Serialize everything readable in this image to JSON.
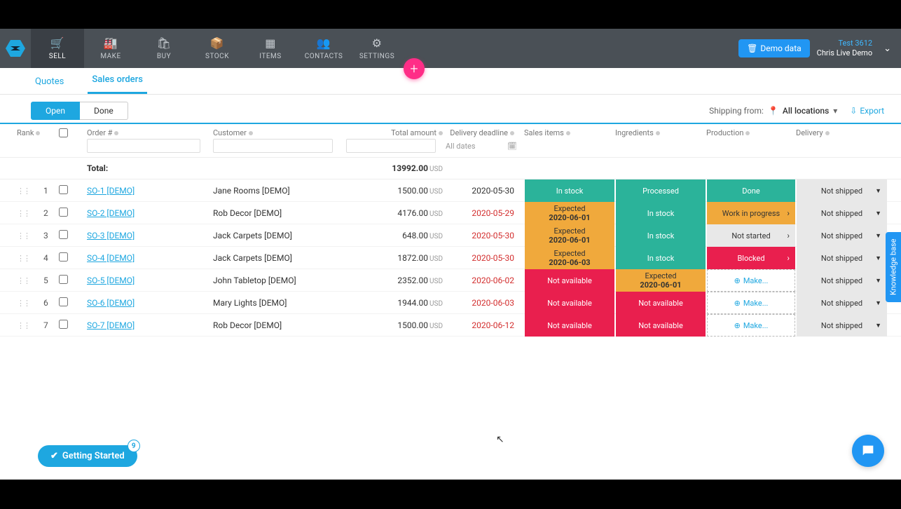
{
  "colors": {
    "accent": "#1ea7e0",
    "green": "#2bb39a",
    "orange": "#f0a93c",
    "red": "#e91f4e",
    "grey": "#e8e8e8",
    "fab": "#ff2d87",
    "blue": "#2196f3"
  },
  "nav": {
    "items": [
      {
        "label": "SELL",
        "icon": "🛒",
        "active": true
      },
      {
        "label": "MAKE",
        "icon": "🏭"
      },
      {
        "label": "BUY",
        "icon": "🛍"
      },
      {
        "label": "STOCK",
        "icon": "📦"
      },
      {
        "label": "ITEMS",
        "icon": "▦"
      },
      {
        "label": "CONTACTS",
        "icon": "👥"
      },
      {
        "label": "SETTINGS",
        "icon": "⚙"
      }
    ],
    "demo_btn": "Demo data",
    "account": {
      "line1": "Test 3612",
      "line2": "Chris Live Demo"
    }
  },
  "subtabs": {
    "quotes": "Quotes",
    "sales_orders": "Sales orders"
  },
  "filter": {
    "open": "Open",
    "done": "Done",
    "shipping_label": "Shipping from:",
    "location": "All locations",
    "export": "Export"
  },
  "columns": {
    "rank": "Rank",
    "order": "Order #",
    "customer": "Customer",
    "total": "Total amount",
    "deadline": "Delivery deadline",
    "sales": "Sales items",
    "ingredients": "Ingredients",
    "production": "Production",
    "delivery": "Delivery",
    "all_dates": "All dates"
  },
  "total": {
    "label": "Total:",
    "amount": "13992.00",
    "currency": "USD"
  },
  "status_labels": {
    "in_stock": "In stock",
    "processed": "Processed",
    "done": "Done",
    "not_shipped": "Not shipped",
    "expected": "Expected",
    "wip": "Work in progress",
    "not_started": "Not started",
    "blocked": "Blocked",
    "not_available": "Not available",
    "make": "Make..."
  },
  "rows": [
    {
      "rank": "1",
      "order": "SO-1 [DEMO]",
      "customer": "Jane Rooms [DEMO]",
      "amount": "1500.00",
      "deadline": "2020-05-30",
      "late": false,
      "sales": {
        "type": "green",
        "text": "in_stock"
      },
      "ing": {
        "type": "green",
        "text": "processed"
      },
      "prod": {
        "type": "green",
        "text": "done"
      },
      "del": "not_shipped"
    },
    {
      "rank": "2",
      "order": "SO-2 [DEMO]",
      "customer": "Rob Decor [DEMO]",
      "amount": "4176.00",
      "deadline": "2020-05-29",
      "late": true,
      "sales": {
        "type": "orange",
        "text": "expected",
        "date": "2020-06-01"
      },
      "ing": {
        "type": "green",
        "text": "in_stock"
      },
      "prod": {
        "type": "orange",
        "text": "wip",
        "arrow": true
      },
      "del": "not_shipped"
    },
    {
      "rank": "3",
      "order": "SO-3 [DEMO]",
      "customer": "Jack Carpets [DEMO]",
      "amount": "648.00",
      "deadline": "2020-05-30",
      "late": true,
      "sales": {
        "type": "orange",
        "text": "expected",
        "date": "2020-06-01"
      },
      "ing": {
        "type": "green",
        "text": "in_stock"
      },
      "prod": {
        "type": "grey",
        "text": "not_started",
        "arrow": true
      },
      "del": "not_shipped"
    },
    {
      "rank": "4",
      "order": "SO-4 [DEMO]",
      "customer": "Jack Carpets [DEMO]",
      "amount": "1872.00",
      "deadline": "2020-05-30",
      "late": true,
      "sales": {
        "type": "orange",
        "text": "expected",
        "date": "2020-06-03"
      },
      "ing": {
        "type": "green",
        "text": "in_stock"
      },
      "prod": {
        "type": "red",
        "text": "blocked",
        "arrow": true
      },
      "del": "not_shipped"
    },
    {
      "rank": "5",
      "order": "SO-5 [DEMO]",
      "customer": "John Tabletop [DEMO]",
      "amount": "2352.00",
      "deadline": "2020-06-02",
      "late": true,
      "sales": {
        "type": "red",
        "text": "not_available"
      },
      "ing": {
        "type": "orange",
        "text": "expected",
        "date": "2020-06-01"
      },
      "prod": {
        "type": "make"
      },
      "del": "not_shipped"
    },
    {
      "rank": "6",
      "order": "SO-6 [DEMO]",
      "customer": "Mary Lights [DEMO]",
      "amount": "1944.00",
      "deadline": "2020-06-03",
      "late": true,
      "sales": {
        "type": "red",
        "text": "not_available"
      },
      "ing": {
        "type": "red",
        "text": "not_available"
      },
      "prod": {
        "type": "make"
      },
      "del": "not_shipped"
    },
    {
      "rank": "7",
      "order": "SO-7 [DEMO]",
      "customer": "Rob Decor [DEMO]",
      "amount": "1500.00",
      "deadline": "2020-06-12",
      "late": true,
      "sales": {
        "type": "red",
        "text": "not_available"
      },
      "ing": {
        "type": "red",
        "text": "not_available"
      },
      "prod": {
        "type": "make"
      },
      "del": "not_shipped"
    }
  ],
  "kb_tab": "Knowledge base",
  "getting_started": {
    "label": "Getting Started",
    "count": "9"
  }
}
